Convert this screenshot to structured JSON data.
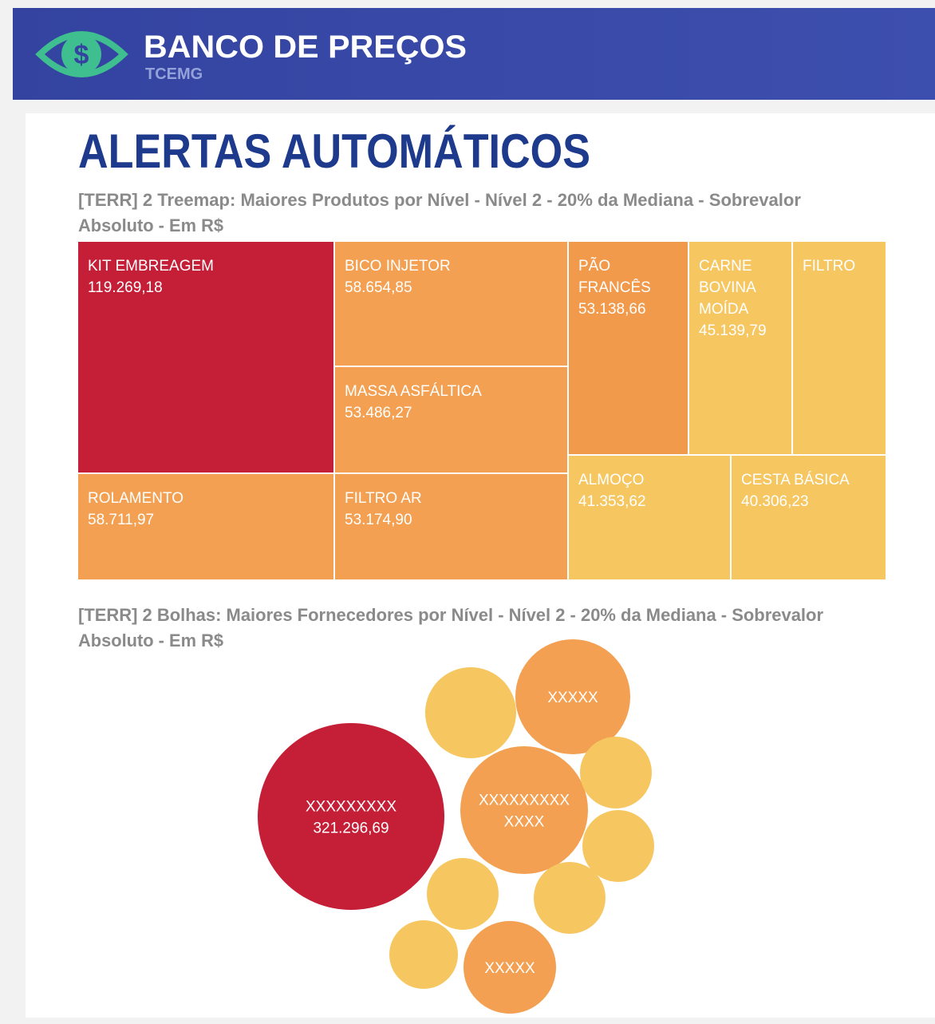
{
  "header": {
    "brand": "BANCO DE PREÇOS",
    "subbrand": "TCEMG"
  },
  "page_title": "ALERTAS AUTOMÁTICOS",
  "chart_data": [
    {
      "type": "treemap",
      "title": [
        "[TERR] 2 Treemap: Maiores Produtos por Nível - Nível 2 - 20% da Mediana - Sobrevalor",
        "Absoluto - Em R$"
      ],
      "categories": [
        "KIT EMBREAGEM",
        "ROLAMENTO",
        "BICO INJETOR",
        "MASSA ASFÁLTICA",
        "FILTRO AR",
        "PÃO FRANCÊS",
        "CARNE BOVINA MOÍDA",
        "FILTRO",
        "ALMOÇO",
        "CESTA BÁSICA"
      ],
      "values": [
        119269.18,
        58711.97,
        58654.85,
        53486.27,
        53174.9,
        53138.66,
        45139.79,
        null,
        41353.62,
        40306.23
      ],
      "value_labels": [
        "119.269,18",
        "58.711,97",
        "58.654,85",
        "53.486,27",
        "53.174,90",
        "53.138,66",
        "45.139,79",
        null,
        "41.353,62",
        "40.306,23"
      ],
      "colors": [
        "#c51f38",
        "#f3a052",
        "#f3a052",
        "#f3a052",
        "#f3a052",
        "#f29a4c",
        "#f6c660",
        "#f6c660",
        "#f6c660",
        "#f6c660"
      ]
    },
    {
      "type": "bubble",
      "title": [
        "[TERR] 2 Bolhas: Maiores Fornecedores por Nível - Nível 2 - 20% da Mediana - Sobrevalor",
        "Absoluto - Em R$"
      ],
      "labels": [
        [
          "XXXXXXXXX"
        ],
        [
          "XXXXX"
        ],
        [
          "XXXXXXXXX",
          "XXXX"
        ],
        [
          "XXXXX"
        ],
        null,
        null,
        null,
        null,
        null,
        null
      ],
      "values": [
        321296.69,
        121700,
        150200,
        79000,
        76300,
        47500,
        47500,
        47500,
        47500,
        43400
      ],
      "value_labels": [
        "321.296,69",
        null,
        null,
        null,
        null,
        null,
        null,
        null,
        null,
        null
      ],
      "colors": [
        "#c51f38",
        "#f3a052",
        "#f3a052",
        "#f3a052",
        "#f6c660",
        "#f6c660",
        "#f6c660",
        "#f6c660",
        "#f6c660",
        "#f6c660"
      ]
    }
  ]
}
